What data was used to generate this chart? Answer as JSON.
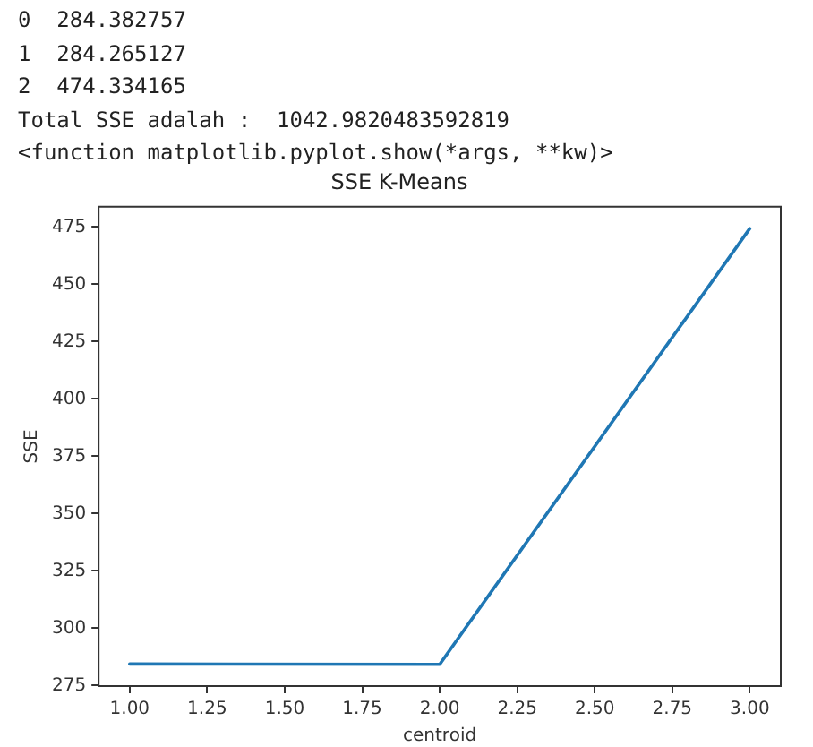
{
  "chart_data": {
    "type": "line",
    "title": "SSE K-Means",
    "xlabel": "centroid",
    "ylabel": "SSE",
    "x": [
      1,
      2,
      3
    ],
    "series": [
      {
        "color": "#1f77b4",
        "values": [
          284.382757,
          284.265127,
          474.334165
        ]
      }
    ],
    "xlim": [
      0.9,
      3.1
    ],
    "xticks": [
      {
        "value": 1,
        "label": "1.00"
      },
      {
        "value": 1.25,
        "label": "1.25"
      },
      {
        "value": 1.5,
        "label": "1.50"
      },
      {
        "value": 1.75,
        "label": "1.75"
      },
      {
        "value": 2,
        "label": "2.00"
      },
      {
        "value": 2.25,
        "label": "2.25"
      },
      {
        "value": 2.5,
        "label": "2.50"
      },
      {
        "value": 2.75,
        "label": "2.75"
      },
      {
        "value": 3,
        "label": "3.00"
      }
    ],
    "ylim": [
      274.77,
      483.84
    ],
    "yticks": [
      275,
      300,
      325,
      350,
      375,
      400,
      425,
      450,
      475
    ],
    "grid": false,
    "legend": false,
    "marker": "none",
    "line_style": "solid",
    "annotations": [
      "0  284.382757",
      "1  284.265127",
      "2  474.334165",
      "Total SSE adalah :  1042.9820483592819",
      "<function matplotlib.pyplot.show(*args, **kw)>"
    ]
  }
}
